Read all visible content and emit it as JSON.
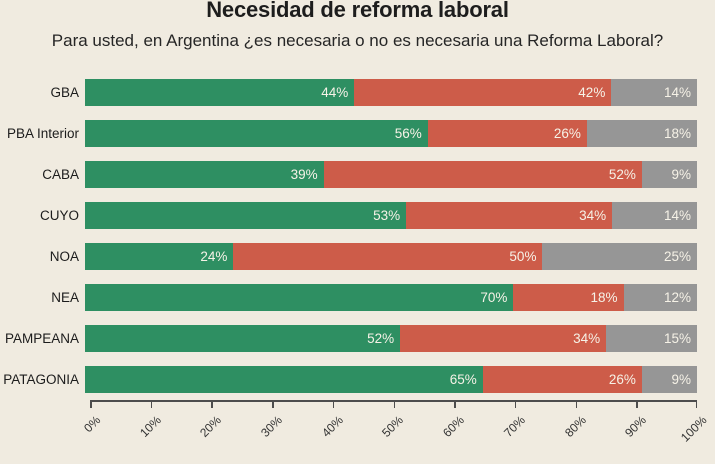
{
  "chart_data": {
    "type": "bar",
    "orientation": "horizontal",
    "stacked": true,
    "title": "Necesidad de reforma laboral",
    "subtitle": "Para usted, en Argentina ¿es necesaria o no es necesaria una Reforma Laboral?",
    "categories": [
      "GBA",
      "PBA Interior",
      "CABA",
      "CUYO",
      "NOA",
      "NEA",
      "PAMPEANA",
      "PATAGONIA"
    ],
    "series": [
      {
        "name": "green",
        "color": "#2e8f62",
        "values": [
          44,
          56,
          39,
          53,
          24,
          70,
          52,
          65
        ]
      },
      {
        "name": "red",
        "color": "#cd5c49",
        "values": [
          42,
          26,
          52,
          34,
          50,
          18,
          34,
          26
        ]
      },
      {
        "name": "gray",
        "color": "#969696",
        "values": [
          14,
          18,
          9,
          14,
          25,
          12,
          15,
          9
        ]
      }
    ],
    "value_suffix": "%",
    "xlim": [
      0,
      100
    ],
    "x_ticks": [
      "0%",
      "10%",
      "20%",
      "30%",
      "40%",
      "50%",
      "60%",
      "70%",
      "80%",
      "90%",
      "100%"
    ],
    "legend": "none",
    "grid": false,
    "background_color": "#f0ebe0",
    "axis_color": "#4d4d4d",
    "segment_label_color": "#f6f2e7"
  }
}
